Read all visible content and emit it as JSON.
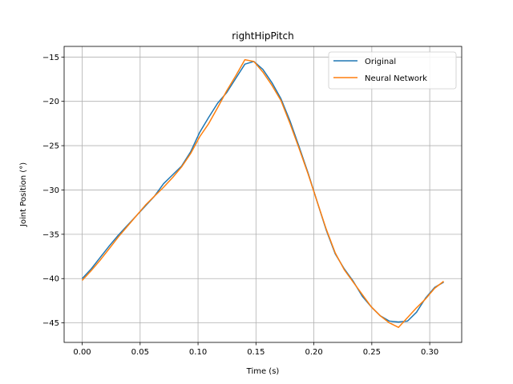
{
  "chart_data": {
    "type": "line",
    "title": "rightHipPitch",
    "xlabel": "Time (s)",
    "ylabel": "Joint Position (°)",
    "xlim": [
      -0.0156,
      0.3276
    ],
    "ylim": [
      -47.2,
      -13.8
    ],
    "xticks": [
      0.0,
      0.05,
      0.1,
      0.15,
      0.2,
      0.25,
      0.3
    ],
    "xtick_labels": [
      "0.00",
      "0.05",
      "0.10",
      "0.15",
      "0.20",
      "0.25",
      "0.30"
    ],
    "yticks": [
      -45,
      -40,
      -35,
      -30,
      -25,
      -20,
      -15
    ],
    "ytick_labels": [
      "−45",
      "−40",
      "−35",
      "−30",
      "−25",
      "−20",
      "−15"
    ],
    "grid": true,
    "legend_position": "top-right",
    "series": [
      {
        "name": "Original",
        "color": "#1f77b4",
        "x": [
          0.0,
          0.0078,
          0.0156,
          0.0234,
          0.0312,
          0.039,
          0.0468,
          0.0546,
          0.0624,
          0.0702,
          0.078,
          0.0858,
          0.0936,
          0.1014,
          0.1092,
          0.117,
          0.1248,
          0.1326,
          0.1404,
          0.1482,
          0.156,
          0.1638,
          0.1716,
          0.1794,
          0.1872,
          0.195,
          0.2028,
          0.2106,
          0.2184,
          0.2262,
          0.234,
          0.2418,
          0.2496,
          0.2574,
          0.2652,
          0.273,
          0.2808,
          0.2886,
          0.2964,
          0.3042,
          0.312
        ],
        "y": [
          -40.0,
          -38.9,
          -37.6,
          -36.3,
          -35.1,
          -34.0,
          -32.9,
          -31.8,
          -30.7,
          -29.3,
          -28.3,
          -27.3,
          -25.7,
          -23.5,
          -21.8,
          -20.2,
          -19.0,
          -17.4,
          -15.8,
          -15.5,
          -16.4,
          -17.9,
          -19.7,
          -22.2,
          -25.1,
          -28.1,
          -31.3,
          -34.5,
          -37.2,
          -38.9,
          -40.3,
          -42.0,
          -43.2,
          -44.2,
          -44.8,
          -44.9,
          -44.8,
          -43.8,
          -42.2,
          -41.0,
          -40.4
        ]
      },
      {
        "name": "Neural Network",
        "color": "#ff7f0e",
        "x": [
          0.0,
          0.0078,
          0.0156,
          0.0234,
          0.0312,
          0.039,
          0.0468,
          0.0546,
          0.0624,
          0.0702,
          0.078,
          0.0858,
          0.0936,
          0.1014,
          0.1092,
          0.117,
          0.1248,
          0.1326,
          0.1404,
          0.1482,
          0.156,
          0.1638,
          0.1716,
          0.1794,
          0.1872,
          0.195,
          0.2028,
          0.2106,
          0.2184,
          0.2262,
          0.234,
          0.2418,
          0.2496,
          0.2574,
          0.2652,
          0.273,
          0.2808,
          0.2886,
          0.2964,
          0.3042,
          0.312
        ],
        "y": [
          -40.2,
          -39.1,
          -37.9,
          -36.6,
          -35.3,
          -34.1,
          -32.9,
          -31.7,
          -30.7,
          -29.7,
          -28.6,
          -27.4,
          -25.9,
          -24.0,
          -22.5,
          -20.7,
          -18.8,
          -17.1,
          -15.3,
          -15.5,
          -16.7,
          -18.2,
          -19.9,
          -22.5,
          -25.3,
          -28.2,
          -31.3,
          -34.4,
          -37.1,
          -39.0,
          -40.4,
          -41.8,
          -43.2,
          -44.2,
          -45.0,
          -45.5,
          -44.4,
          -43.3,
          -42.3,
          -41.1,
          -40.3
        ]
      }
    ]
  }
}
